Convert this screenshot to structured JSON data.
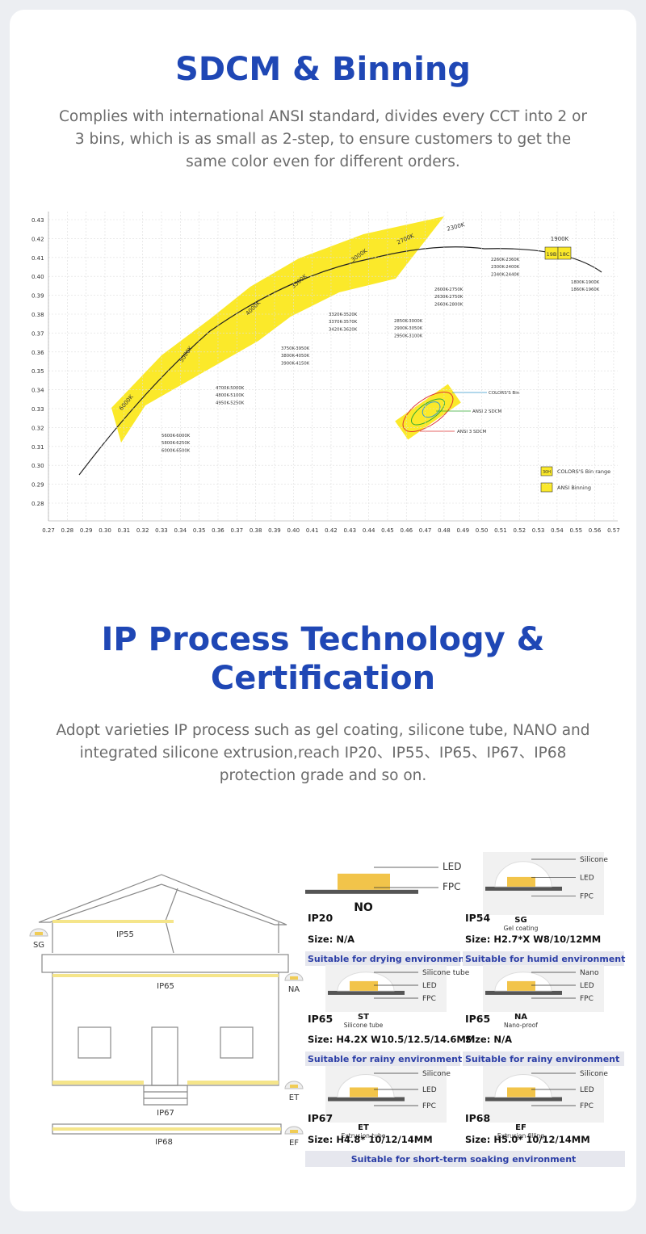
{
  "sections": [
    {
      "title": "SDCM & Binning",
      "description": "Complies with international ANSI standard, divides every CCT into 2 or 3 bins, which is as small as 2-step, to ensure customers to get the same color even for different orders."
    },
    {
      "title": "IP Process Technology & Certification",
      "description": "Adopt varieties IP process such as gel coating, silicone tube, NANO and integrated silicone extrusion,reach IP20、IP55、IP65、IP67、IP68 protection grade and so on."
    }
  ],
  "binning_diagram": {
    "x_ticks": [
      "0.27",
      "0.28",
      "0.29",
      "0.30",
      "0.31",
      "0.32",
      "0.33",
      "0.34",
      "0.35",
      "0.36",
      "0.37",
      "0.38",
      "0.39",
      "0.40",
      "0.41",
      "0.42",
      "0.43",
      "0.44",
      "0.45",
      "0.46",
      "0.47",
      "0.48",
      "0.49",
      "0.50",
      "0.51",
      "0.52",
      "0.53",
      "0.54",
      "0.55",
      "0.56",
      "0.57"
    ],
    "y_ticks": [
      "0.43",
      "0.42",
      "0.41",
      "0.40",
      "0.39",
      "0.38",
      "0.37",
      "0.36",
      "0.35",
      "0.34",
      "0.33",
      "0.32",
      "0.31",
      "0.30",
      "0.29",
      "0.28"
    ],
    "cct_groups": [
      {
        "cct": "6000K",
        "ranges": [
          "5600K-6000K",
          "5800K-6250K",
          "6000K-6500K"
        ]
      },
      {
        "cct": "5000K",
        "ranges": [
          "4700K-5000K",
          "4800K-5100K",
          "4950K-5250K"
        ]
      },
      {
        "cct": "4000K",
        "ranges": [
          "3750K-3950K",
          "3800K-4050K",
          "3900K-4150K"
        ]
      },
      {
        "cct": "3500K",
        "ranges": [
          "3320K-3520K",
          "3370K-3570K",
          "3420K-3620K"
        ]
      },
      {
        "cct": "3000K",
        "ranges": [
          "2850K-3000K",
          "2900K-3050K",
          "2950K-3100K"
        ]
      },
      {
        "cct": "2700K",
        "ranges": [
          "2600K-2750K",
          "2630K-2750K",
          "2660K-2800K"
        ]
      },
      {
        "cct": "2300K",
        "ranges": [
          "2260K-2360K",
          "2300K-2400K",
          "2340K-2440K"
        ]
      },
      {
        "cct": "1900K",
        "codes": [
          "19B",
          "18C"
        ],
        "ranges": [
          "1800K-1900K",
          "1860K-1960K"
        ]
      }
    ],
    "ellipse_labels": [
      "COLORS'S Bin",
      "ANSI 2 SDCM",
      "ANSI 3 SDCM"
    ],
    "legend": [
      {
        "swatch": "30H",
        "label": "COLORS'S Bin range"
      },
      {
        "label": "ANSI Binning"
      }
    ]
  },
  "house": {
    "zones": [
      "IP55",
      "IP65",
      "IP67",
      "IP68"
    ],
    "side_labels": [
      "SG",
      "NA",
      "ET",
      "EF"
    ]
  },
  "products": [
    {
      "code": "NO",
      "grade": "IP20",
      "size": "Size: N/A",
      "suitability": "Suitable for drying environment",
      "parts": [
        "LED",
        "FPC"
      ]
    },
    {
      "code": "SG",
      "subtitle": "Gel coating",
      "grade": "IP54",
      "size": "Size: H2.7*X W8/10/12MM",
      "suitability": "Suitable for humid environment",
      "parts": [
        "Silicone",
        "LED",
        "FPC"
      ]
    },
    {
      "code": "ST",
      "subtitle": "Silicone tube",
      "grade": "IP65",
      "size": "Size: H4.2X W10.5/12.5/14.6MM",
      "suitability": "Suitable for rainy environment",
      "parts": [
        "Silicone tube",
        "LED",
        "FPC"
      ]
    },
    {
      "code": "NA",
      "subtitle": "Nano-proof",
      "grade": "IP65",
      "size": "Size: N/A",
      "suitability": "Suitable for rainy environment",
      "parts": [
        "Nano",
        "LED",
        "FPC"
      ]
    },
    {
      "code": "ET",
      "subtitle": "Extrusion tube",
      "grade": "IP67",
      "size": "Size: H4.8* 10/12/14MM",
      "parts": [
        "Silicone",
        "LED",
        "FPC"
      ]
    },
    {
      "code": "EF",
      "subtitle": "Extrusion filling",
      "grade": "IP68",
      "size": "Size: H5.0* 10/12/14MM",
      "parts": [
        "Silicone",
        "LED",
        "FPC"
      ]
    }
  ],
  "shared_suitability": "Suitable for short-term soaking environment"
}
